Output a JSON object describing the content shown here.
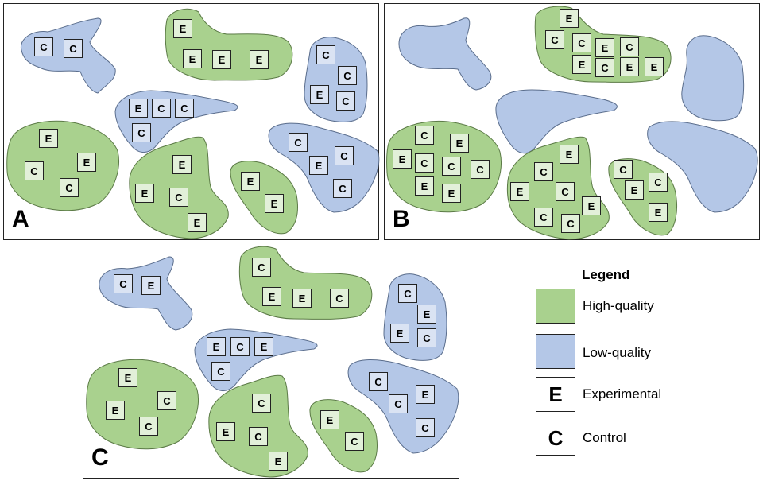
{
  "panels": [
    {
      "letter": "A",
      "plots": [
        [
          "C",
          "C"
        ],
        [
          "E",
          "E",
          "E",
          "E"
        ],
        [
          "C",
          "C",
          "E",
          "C"
        ],
        [
          "E",
          "C",
          "C",
          "C"
        ],
        [
          "E",
          "E",
          "C",
          "C"
        ],
        [
          "E",
          "E",
          "C",
          "E"
        ],
        [
          "E",
          "E"
        ],
        [
          "C",
          "C",
          "E",
          "C"
        ]
      ]
    },
    {
      "letter": "B",
      "plots": [
        [],
        [
          "E",
          "C",
          "C",
          "E",
          "C",
          "E",
          "C",
          "E",
          "E"
        ],
        [],
        [
          "C",
          "E",
          "E",
          "C",
          "C",
          "C",
          "E",
          "E"
        ],
        [
          "E",
          "C",
          "E",
          "C",
          "E",
          "C",
          "C"
        ],
        [
          "C",
          "C",
          "E",
          "E"
        ],
        []
      ]
    },
    {
      "letter": "C",
      "plots": [
        [
          "C",
          "E"
        ],
        [
          "C",
          "E",
          "E",
          "C"
        ],
        [
          "C",
          "E",
          "E",
          "C"
        ],
        [
          "E",
          "C",
          "E",
          "C"
        ],
        [
          "E",
          "C",
          "E",
          "C"
        ],
        [
          "C",
          "E",
          "C",
          "E"
        ],
        [
          "E",
          "C"
        ],
        [
          "C",
          "E",
          "C",
          "C"
        ]
      ]
    }
  ],
  "legend": {
    "title": "Legend",
    "items": [
      {
        "swatch": "",
        "label": "High-quality",
        "color": "#a9d18e"
      },
      {
        "swatch": "",
        "label": "Low-quality",
        "color": "#b4c7e7"
      },
      {
        "swatch": "E",
        "label": "Experimental",
        "color": "#ffffff"
      },
      {
        "swatch": "C",
        "label": "Control",
        "color": "#ffffff"
      }
    ]
  }
}
